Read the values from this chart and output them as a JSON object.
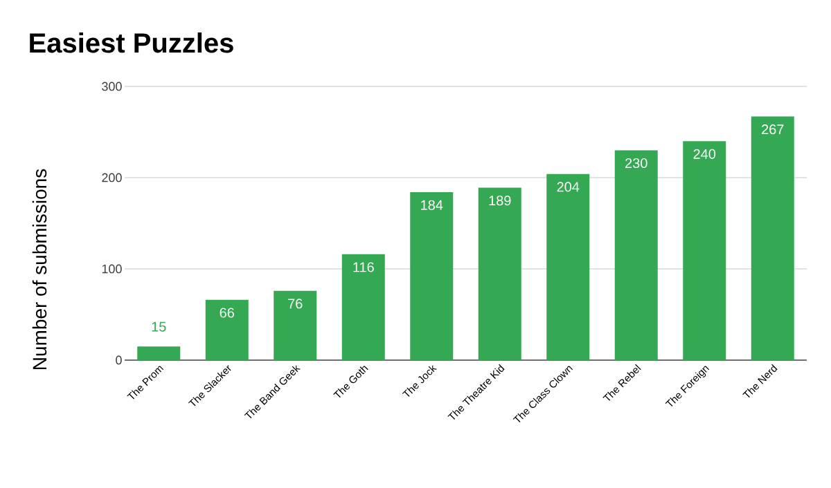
{
  "chart_data": {
    "type": "bar",
    "title": "Easiest Puzzles",
    "ylabel": "Number of submissions",
    "categories": [
      "The Prom",
      "The Slacker",
      "The Band Geek",
      "The Goth",
      "The Jock",
      "The Theatre Kid",
      "The Class Clown",
      "The Rebel",
      "The Foreign",
      "The Nerd"
    ],
    "values": [
      15,
      66,
      76,
      116,
      184,
      189,
      204,
      230,
      240,
      267
    ],
    "color": "#34a853",
    "ylim": [
      0,
      300
    ],
    "yticks": [
      0,
      100,
      200,
      300
    ],
    "grid": "y",
    "data_labels": true
  }
}
